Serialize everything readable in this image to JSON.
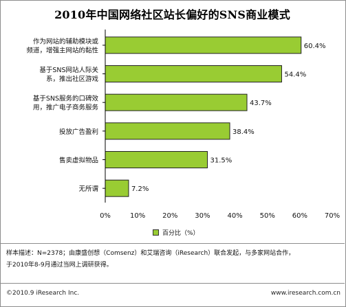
{
  "title": "2010年中国网络社区站长偏好的SNS商业模式",
  "chart_data": {
    "type": "bar",
    "orientation": "horizontal",
    "categories": [
      [
        "作为网站的辅助模块或",
        "频道，增强主网站的黏性"
      ],
      [
        "基于SNS网站人际关",
        "系，推出社区游戏"
      ],
      [
        "基于SNS服务的口碑效",
        "用，推广电子商务服务"
      ],
      [
        "投放广告盈利"
      ],
      [
        "售卖虚拟物品"
      ],
      [
        "无所谓"
      ]
    ],
    "values": [
      60.4,
      54.4,
      43.7,
      38.4,
      31.5,
      7.2
    ],
    "value_labels": [
      "60.4%",
      "54.4%",
      "43.7%",
      "38.4%",
      "31.5%",
      "7.2%"
    ],
    "series": [
      {
        "name": "百分比（%）",
        "values": [
          60.4,
          54.4,
          43.7,
          38.4,
          31.5,
          7.2
        ]
      }
    ],
    "xlim": [
      0,
      70
    ],
    "xticks": [
      "0%",
      "10%",
      "20%",
      "30%",
      "40%",
      "50%",
      "60%",
      "70%"
    ],
    "xtick_values": [
      0,
      10,
      20,
      30,
      40,
      50,
      60,
      70
    ],
    "grid": false,
    "legend_position": "bottom"
  },
  "colors": {
    "bar": "#99cc33",
    "bar_edge": "#222222",
    "axis": "#000000"
  },
  "legend": {
    "label": "百分比（%）"
  },
  "note": {
    "line1": "样本描述：N=2378；由康盛创想（Comsenz）和艾瑞咨询（iResearch）联合发起，与多家网站合作，",
    "line2": "于2010年8-9月通过当网上调研获得。"
  },
  "footer": {
    "copyright": "©2010.9 iResearch Inc.",
    "website": "www.iresearch.com.cn"
  }
}
